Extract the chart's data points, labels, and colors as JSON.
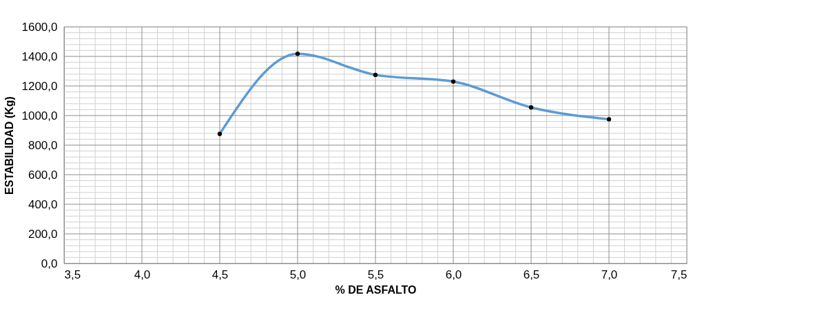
{
  "chart_data": {
    "type": "line",
    "xlabel": "% DE ASFALTO",
    "ylabel": "ESTABILIDAD (Kg)",
    "x": [
      4.5,
      5.0,
      5.5,
      6.0,
      6.5,
      7.0
    ],
    "series": [
      {
        "color": "#5b9bd5",
        "values": [
          876,
          1418,
          1275,
          1230,
          1055,
          975
        ]
      }
    ],
    "marker": "circle",
    "line_style": "solid",
    "grid": true,
    "legend": false,
    "xlim": [
      3.5,
      7.5
    ],
    "xticks": [
      {
        "value": 3.5,
        "label": "3,5"
      },
      {
        "value": 3.6,
        "label": null
      },
      {
        "value": 3.7,
        "label": null
      },
      {
        "value": 3.8,
        "label": null
      },
      {
        "value": 3.9,
        "label": null
      },
      {
        "value": 4.0,
        "label": "4,0"
      },
      {
        "value": 4.1,
        "label": null
      },
      {
        "value": 4.2,
        "label": null
      },
      {
        "value": 4.3,
        "label": null
      },
      {
        "value": 4.4,
        "label": null
      },
      {
        "value": 4.5,
        "label": "4,5"
      },
      {
        "value": 4.6,
        "label": null
      },
      {
        "value": 4.7,
        "label": null
      },
      {
        "value": 4.8,
        "label": null
      },
      {
        "value": 4.9,
        "label": null
      },
      {
        "value": 5.0,
        "label": "5,0"
      },
      {
        "value": 5.1,
        "label": null
      },
      {
        "value": 5.2,
        "label": null
      },
      {
        "value": 5.3,
        "label": null
      },
      {
        "value": 5.4,
        "label": null
      },
      {
        "value": 5.5,
        "label": "5,5"
      },
      {
        "value": 5.6,
        "label": null
      },
      {
        "value": 5.7,
        "label": null
      },
      {
        "value": 5.8,
        "label": null
      },
      {
        "value": 5.9,
        "label": null
      },
      {
        "value": 6.0,
        "label": "6,0"
      },
      {
        "value": 6.1,
        "label": null
      },
      {
        "value": 6.2,
        "label": null
      },
      {
        "value": 6.3,
        "label": null
      },
      {
        "value": 6.4,
        "label": null
      },
      {
        "value": 6.5,
        "label": "6,5"
      },
      {
        "value": 6.6,
        "label": null
      },
      {
        "value": 6.7,
        "label": null
      },
      {
        "value": 6.8,
        "label": null
      },
      {
        "value": 6.9,
        "label": null
      },
      {
        "value": 7.0,
        "label": "7,0"
      },
      {
        "value": 7.1,
        "label": null
      },
      {
        "value": 7.2,
        "label": null
      },
      {
        "value": 7.3,
        "label": null
      },
      {
        "value": 7.4,
        "label": null
      },
      {
        "value": 7.5,
        "label": "7,5"
      }
    ],
    "ylim": [
      0,
      1600
    ],
    "yticks": [
      {
        "value": 0,
        "label": "0,0"
      },
      {
        "value": 40,
        "label": null
      },
      {
        "value": 80,
        "label": null
      },
      {
        "value": 120,
        "label": null
      },
      {
        "value": 160,
        "label": null
      },
      {
        "value": 200,
        "label": "200,0"
      },
      {
        "value": 240,
        "label": null
      },
      {
        "value": 280,
        "label": null
      },
      {
        "value": 320,
        "label": null
      },
      {
        "value": 360,
        "label": null
      },
      {
        "value": 400,
        "label": "400,0"
      },
      {
        "value": 440,
        "label": null
      },
      {
        "value": 480,
        "label": null
      },
      {
        "value": 520,
        "label": null
      },
      {
        "value": 560,
        "label": null
      },
      {
        "value": 600,
        "label": "600,0"
      },
      {
        "value": 640,
        "label": null
      },
      {
        "value": 680,
        "label": null
      },
      {
        "value": 720,
        "label": null
      },
      {
        "value": 760,
        "label": null
      },
      {
        "value": 800,
        "label": "800,0"
      },
      {
        "value": 840,
        "label": null
      },
      {
        "value": 880,
        "label": null
      },
      {
        "value": 920,
        "label": null
      },
      {
        "value": 960,
        "label": null
      },
      {
        "value": 1000,
        "label": "1000,0"
      },
      {
        "value": 1040,
        "label": null
      },
      {
        "value": 1080,
        "label": null
      },
      {
        "value": 1120,
        "label": null
      },
      {
        "value": 1160,
        "label": null
      },
      {
        "value": 1200,
        "label": "1200,0"
      },
      {
        "value": 1240,
        "label": null
      },
      {
        "value": 1280,
        "label": null
      },
      {
        "value": 1320,
        "label": null
      },
      {
        "value": 1360,
        "label": null
      },
      {
        "value": 1400,
        "label": "1400,0"
      },
      {
        "value": 1440,
        "label": null
      },
      {
        "value": 1480,
        "label": null
      },
      {
        "value": 1520,
        "label": null
      },
      {
        "value": 1560,
        "label": null
      },
      {
        "value": 1600,
        "label": "1600,0"
      }
    ]
  }
}
